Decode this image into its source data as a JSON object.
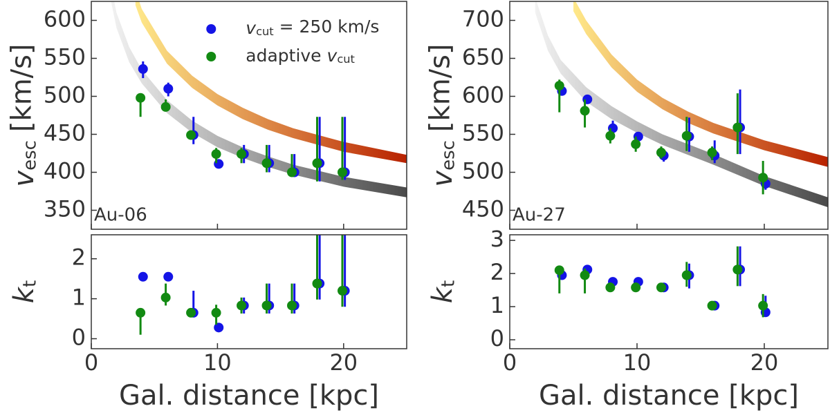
{
  "chart_data": [
    {
      "type": "scatter",
      "annotation": "Au-06",
      "ylabel": {
        "symbol": "v",
        "sub": "esc",
        "unit": "[km/s]"
      },
      "xlim": [
        0,
        25
      ],
      "xticks": [
        0,
        10,
        20
      ],
      "ylim": [
        325,
        625
      ],
      "yticks": [
        350,
        400,
        450,
        500,
        550,
        600
      ],
      "legend": "upper right",
      "series": [
        {
          "name": {
            "symbol": "v",
            "sub": "cut",
            "post": " = 250 km/s"
          },
          "color": "#1414e6",
          "x": [
            4.1,
            6.1,
            8.1,
            10.1,
            12.1,
            14.1,
            16.1,
            18.1,
            20.1
          ],
          "values": [
            536,
            510,
            449,
            411,
            424,
            412,
            400,
            412,
            400
          ],
          "errors": [
            [
              12,
              10
            ],
            [
              10,
              8
            ],
            [
              12,
              24
            ],
            [
              4,
              4
            ],
            [
              12,
              12
            ],
            [
              12,
              24
            ],
            [
              6,
              24
            ],
            [
              24,
              61
            ],
            [
              10,
              73
            ]
          ]
        },
        {
          "name": {
            "pre": "adaptive ",
            "symbol": "v",
            "sub": "cut"
          },
          "color": "#128a12",
          "x": [
            3.9,
            5.9,
            7.9,
            9.9,
            11.9,
            13.9,
            15.9,
            17.9,
            19.9
          ],
          "values": [
            498,
            486,
            449,
            424,
            424,
            412,
            400,
            412,
            400
          ],
          "errors": [
            [
              25,
              5
            ],
            [
              6,
              10
            ],
            [
              4,
              4
            ],
            [
              12,
              8
            ],
            [
              12,
              8
            ],
            [
              12,
              24
            ],
            [
              6,
              24
            ],
            [
              24,
              61
            ],
            [
              10,
              73
            ]
          ]
        }
      ],
      "bands": [
        {
          "colors": [
            "#f2f2f2",
            "#4a4a4a"
          ],
          "x": [
            1.5,
            2,
            3,
            4,
            6,
            8,
            10,
            12,
            14,
            16,
            20,
            25
          ],
          "upper": [
            650,
            610,
            565,
            535,
            495,
            468,
            448,
            433,
            421,
            410,
            394,
            380
          ],
          "lower": [
            630,
            590,
            545,
            517,
            478,
            452,
            433,
            419,
            407,
            397,
            381,
            367
          ]
        },
        {
          "colors": [
            "#ffe98a",
            "#b82200"
          ],
          "x": [
            3.5,
            4,
            6,
            8,
            10,
            12,
            14,
            16,
            20,
            25
          ],
          "upper": [
            640,
            615,
            560,
            527,
            503,
            485,
            470,
            458,
            440,
            423
          ],
          "lower": [
            620,
            597,
            543,
            511,
            488,
            470,
            456,
            445,
            427,
            412
          ]
        }
      ]
    },
    {
      "type": "scatter",
      "ylabel": {
        "symbol": "k",
        "sub": "t"
      },
      "xlabel": "Gal. distance [kpc]",
      "xlim": [
        0,
        25
      ],
      "xticks": [
        0,
        10,
        20
      ],
      "ylim": [
        -0.25,
        2.6
      ],
      "yticks": [
        0,
        1,
        2
      ],
      "series": [
        {
          "color": "#1414e6",
          "x": [
            4.1,
            6.1,
            8.1,
            10.1,
            12.1,
            14.1,
            16.1,
            18.1,
            20.1
          ],
          "values": [
            1.55,
            1.55,
            0.65,
            0.28,
            0.83,
            0.83,
            0.83,
            1.38,
            1.2
          ],
          "errors": [
            [
              0.1,
              0.1
            ],
            [
              0.1,
              0.1
            ],
            [
              0.1,
              0.55
            ],
            [
              0.1,
              0.1
            ],
            [
              0.2,
              0.2
            ],
            [
              0.2,
              0.55
            ],
            [
              0.2,
              0.55
            ],
            [
              0.4,
              1.3
            ],
            [
              0.4,
              1.5
            ]
          ]
        },
        {
          "color": "#128a12",
          "x": [
            3.9,
            5.9,
            7.9,
            9.9,
            11.9,
            13.9,
            15.9,
            17.9,
            19.9
          ],
          "values": [
            0.65,
            1.03,
            0.65,
            0.65,
            0.83,
            0.83,
            0.83,
            1.38,
            1.2
          ],
          "errors": [
            [
              0.55,
              0.1
            ],
            [
              0.2,
              0.35
            ],
            [
              0.05,
              0.05
            ],
            [
              0.3,
              0.2
            ],
            [
              0.2,
              0.2
            ],
            [
              0.2,
              0.55
            ],
            [
              0.2,
              0.55
            ],
            [
              0.4,
              1.3
            ],
            [
              0.4,
              1.5
            ]
          ]
        }
      ]
    },
    {
      "type": "scatter",
      "annotation": "Au-27",
      "ylabel": {
        "symbol": "v",
        "sub": "esc",
        "unit": "[km/s]"
      },
      "xlim": [
        0,
        25
      ],
      "xticks": [
        0,
        10,
        20
      ],
      "ylim": [
        425,
        725
      ],
      "yticks": [
        450,
        500,
        550,
        600,
        650,
        700
      ],
      "series": [
        {
          "color": "#1414e6",
          "x": [
            4.1,
            6.1,
            8.1,
            10.1,
            12.1,
            14.1,
            16.1,
            18.1,
            20.1
          ],
          "values": [
            607,
            596,
            558,
            547,
            522,
            547,
            522,
            559,
            485
          ],
          "errors": [
            [
              5,
              5
            ],
            [
              5,
              5
            ],
            [
              10,
              10
            ],
            [
              5,
              5
            ],
            [
              8,
              8
            ],
            [
              20,
              25
            ],
            [
              10,
              20
            ],
            [
              35,
              50
            ],
            [
              8,
              10
            ]
          ]
        },
        {
          "color": "#128a12",
          "x": [
            3.9,
            5.9,
            7.9,
            9.9,
            11.9,
            13.9,
            15.9,
            17.9,
            19.9
          ],
          "values": [
            614,
            581,
            548,
            537,
            526,
            548,
            526,
            559,
            493
          ],
          "errors": [
            [
              35,
              8
            ],
            [
              22,
              15
            ],
            [
              10,
              10
            ],
            [
              10,
              10
            ],
            [
              8,
              8
            ],
            [
              20,
              25
            ],
            [
              10,
              8
            ],
            [
              35,
              45
            ],
            [
              22,
              22
            ]
          ]
        }
      ],
      "bands": [
        {
          "colors": [
            "#f2f2f2",
            "#4a4a4a"
          ],
          "x": [
            2,
            3,
            4,
            6,
            8,
            10,
            12,
            14,
            16,
            20,
            25
          ],
          "upper": [
            730,
            680,
            648,
            612,
            587,
            567,
            550,
            537,
            524,
            495,
            467
          ],
          "lower": [
            710,
            660,
            630,
            593,
            570,
            552,
            536,
            523,
            510,
            482,
            454
          ]
        },
        {
          "colors": [
            "#ffe98a",
            "#b82200"
          ],
          "x": [
            5,
            6,
            8,
            10,
            12,
            14,
            16,
            20,
            25
          ],
          "upper": [
            730,
            700,
            655,
            622,
            598,
            580,
            565,
            542,
            520
          ],
          "lower": [
            712,
            682,
            638,
            606,
            583,
            565,
            551,
            529,
            507
          ]
        }
      ]
    },
    {
      "type": "scatter",
      "ylabel": {
        "symbol": "k",
        "sub": "t"
      },
      "xlabel": "Gal. distance [kpc]",
      "xlim": [
        0,
        25
      ],
      "xticks": [
        0,
        10,
        20
      ],
      "ylim": [
        -0.27,
        3.17
      ],
      "yticks": [
        0,
        1,
        2,
        3
      ],
      "series": [
        {
          "color": "#1414e6",
          "x": [
            4.1,
            6.1,
            8.1,
            10.1,
            12.1,
            14.1,
            16.1,
            18.1,
            20.1
          ],
          "values": [
            1.95,
            2.12,
            1.75,
            1.75,
            1.58,
            1.95,
            1.03,
            2.12,
            0.83
          ],
          "errors": [
            [
              0.1,
              0.1
            ],
            [
              0.1,
              0.1
            ],
            [
              0.1,
              0.1
            ],
            [
              0.1,
              0.1
            ],
            [
              0.1,
              0.1
            ],
            [
              0.4,
              0.35
            ],
            [
              0.1,
              0.1
            ],
            [
              0.5,
              0.7
            ],
            [
              0.1,
              0.5
            ]
          ]
        },
        {
          "color": "#128a12",
          "x": [
            3.9,
            5.9,
            7.9,
            9.9,
            11.9,
            13.9,
            15.9,
            17.9,
            19.9
          ],
          "values": [
            2.1,
            1.95,
            1.58,
            1.58,
            1.58,
            1.95,
            1.03,
            2.12,
            1.03
          ],
          "errors": [
            [
              0.7,
              0.1
            ],
            [
              0.55,
              0.2
            ],
            [
              0.1,
              0.15
            ],
            [
              0.1,
              0.15
            ],
            [
              0.1,
              0.1
            ],
            [
              0.35,
              0.4
            ],
            [
              0.1,
              0.1
            ],
            [
              0.5,
              0.7
            ],
            [
              0.35,
              0.35
            ]
          ]
        }
      ]
    }
  ]
}
